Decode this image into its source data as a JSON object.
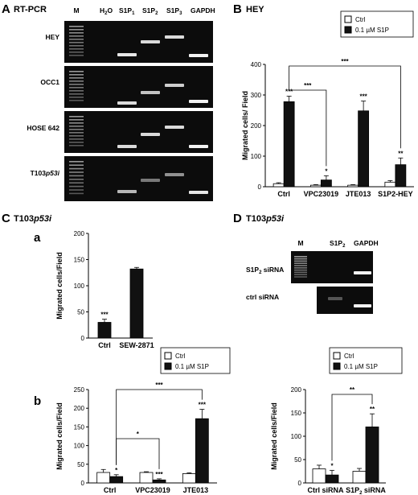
{
  "figure": {
    "panelA": {
      "letter": "A",
      "title": "RT-PCR",
      "lanes": [
        "M",
        "H2O",
        "S1P1",
        "S1P2",
        "S1P3",
        "GAPDH"
      ],
      "rows": [
        "HEY",
        "OCC1",
        "HOSE 642",
        "T103p53i"
      ]
    },
    "panelB": {
      "letter": "B",
      "title": "HEY"
    },
    "panelC": {
      "letter": "C",
      "title": "T103p53i",
      "sub_a": "a",
      "sub_b": "b"
    },
    "panelD": {
      "letter": "D",
      "title": "T103p53i",
      "gel_lanes": [
        "M",
        "S1P2",
        "GAPDH"
      ],
      "gel_rows": [
        "S1P2 siRNA",
        "ctrl siRNA"
      ]
    }
  },
  "chart_data": [
    {
      "id": "B",
      "type": "bar",
      "categories": [
        "Ctrl",
        "VPC23019",
        "JTE013",
        "S1P2-HEY"
      ],
      "ylabel": "Migrated cells/ Field",
      "ylim": [
        0,
        400
      ],
      "yticks": [
        "0",
        "100",
        "200",
        "300",
        "400"
      ],
      "legend": [
        "Ctrl",
        "0.1 µM S1P"
      ],
      "series": [
        {
          "name": "Ctrl",
          "values": [
            10,
            5,
            5,
            15
          ],
          "errors": [
            3,
            2,
            2,
            5
          ]
        },
        {
          "name": "0.1 µM S1P",
          "values": [
            278,
            22,
            248,
            72
          ],
          "errors": [
            18,
            14,
            32,
            22
          ]
        }
      ],
      "stars": [
        [
          "",
          "***"
        ],
        [
          "",
          "*"
        ],
        [
          "",
          "***"
        ],
        [
          "",
          "**"
        ]
      ],
      "brackets": [
        {
          "from": 0,
          "to": 1,
          "label": "***"
        },
        {
          "from": 0,
          "to": 3,
          "label": "***"
        }
      ]
    },
    {
      "id": "Ca",
      "type": "bar",
      "categories": [
        "Ctrl",
        "SEW-2871"
      ],
      "ylabel": "Migrated cells/Field",
      "ylim": [
        0,
        200
      ],
      "yticks": [
        "0",
        "50",
        "100",
        "150",
        "200"
      ],
      "series": [
        {
          "name": "",
          "values": [
            30,
            132
          ],
          "errors": [
            6,
            3
          ]
        }
      ],
      "stars": [
        [
          "",
          "***"
        ]
      ]
    },
    {
      "id": "Cb",
      "type": "bar",
      "categories": [
        "Ctrl",
        "VPC23019",
        "JTE013"
      ],
      "ylabel": "Migrated cells/Field",
      "ylim": [
        0,
        250
      ],
      "yticks": [
        "0",
        "50",
        "100",
        "150",
        "200",
        "250"
      ],
      "legend": [
        "Ctrl",
        "0.1 µM S1P"
      ],
      "series": [
        {
          "name": "Ctrl",
          "values": [
            28,
            28,
            25
          ],
          "errors": [
            8,
            2,
            2
          ]
        },
        {
          "name": "0.1 µM S1P",
          "values": [
            17,
            8,
            172
          ],
          "errors": [
            5,
            3,
            25
          ]
        }
      ],
      "stars": [
        [
          "",
          "*"
        ],
        [
          "",
          "***"
        ],
        [
          "",
          "***"
        ]
      ],
      "brackets": [
        {
          "from": 0,
          "to": 1,
          "label": "*"
        },
        {
          "from": 0,
          "to": 2,
          "label": "***"
        }
      ]
    },
    {
      "id": "D",
      "type": "bar",
      "categories": [
        "Ctrl siRNA",
        "S1P2 siRNA"
      ],
      "ylabel": "Migrated cells/Field",
      "ylim": [
        0,
        200
      ],
      "yticks": [
        "0",
        "50",
        "100",
        "150",
        "200"
      ],
      "legend": [
        "Ctrl",
        "0.1 µM S1P"
      ],
      "series": [
        {
          "name": "Ctrl",
          "values": [
            30,
            25
          ],
          "errors": [
            8,
            6
          ]
        },
        {
          "name": "0.1 µM S1P",
          "values": [
            17,
            120
          ],
          "errors": [
            10,
            28
          ]
        }
      ],
      "stars": [
        [
          "",
          "*"
        ],
        [
          "",
          "**"
        ]
      ],
      "brackets": [
        {
          "from": 0,
          "to": 1,
          "label": "**"
        }
      ]
    }
  ]
}
